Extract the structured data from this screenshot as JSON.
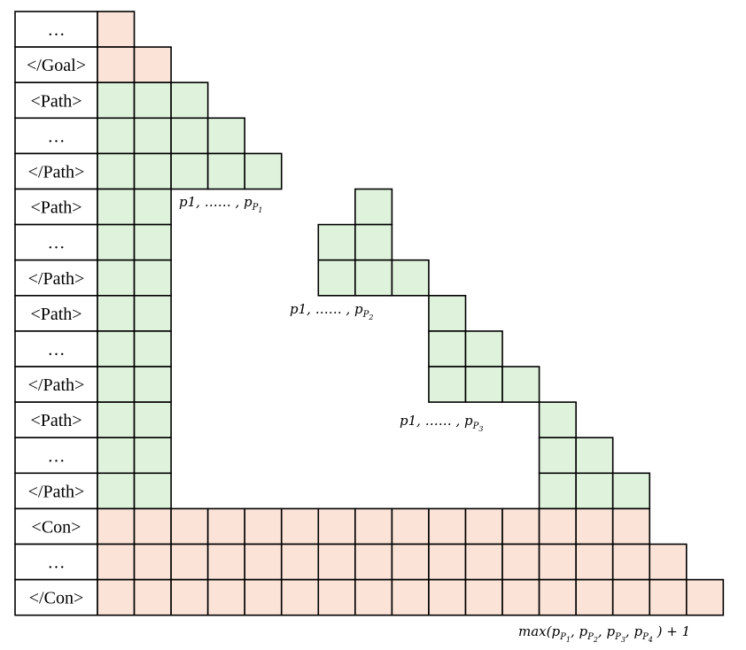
{
  "rows": [
    {
      "label": "…",
      "type": "goal",
      "green": 0,
      "pink": 1
    },
    {
      "label": "</Goal>",
      "type": "goal",
      "green": 0,
      "pink": 2
    },
    {
      "label": "<Path>",
      "type": "path",
      "green": 3,
      "pink": 0
    },
    {
      "label": "…",
      "type": "path",
      "green": 4,
      "pink": 0
    },
    {
      "label": "</Path>",
      "type": "path",
      "green": 5,
      "pink": 0
    },
    {
      "label": "<Path>",
      "type": "path",
      "green": 2,
      "pink": 0,
      "extra_start": 7,
      "extra_len": 1
    },
    {
      "label": "…",
      "type": "path",
      "green": 2,
      "pink": 0,
      "extra_start": 6,
      "extra_len": 2
    },
    {
      "label": "</Path>",
      "type": "path",
      "green": 2,
      "pink": 0,
      "extra_start": 6,
      "extra_len": 3
    },
    {
      "label": "<Path>",
      "type": "path",
      "green": 2,
      "pink": 0,
      "extra_start": 9,
      "extra_len": 1
    },
    {
      "label": "…",
      "type": "path",
      "green": 2,
      "pink": 0,
      "extra_start": 9,
      "extra_len": 2
    },
    {
      "label": "</Path>",
      "type": "path",
      "green": 2,
      "pink": 0,
      "extra_start": 9,
      "extra_len": 3
    },
    {
      "label": "<Path>",
      "type": "path",
      "green": 2,
      "pink": 0,
      "extra_start": 12,
      "extra_len": 1
    },
    {
      "label": "…",
      "type": "path",
      "green": 2,
      "pink": 0,
      "extra_start": 12,
      "extra_len": 2
    },
    {
      "label": "</Path>",
      "type": "path",
      "green": 2,
      "pink": 0,
      "extra_start": 12,
      "extra_len": 3
    },
    {
      "label": "<Con>",
      "type": "con",
      "green": 0,
      "pink": 15
    },
    {
      "label": "…",
      "type": "con",
      "green": 0,
      "pink": 16
    },
    {
      "label": "</Con>",
      "type": "con",
      "green": 0,
      "pink": 17
    }
  ],
  "annotations": {
    "p1": {
      "base": "p",
      "first": "1",
      "dots": ", …… , ",
      "sub": "P",
      "subsub": "1"
    },
    "p2": {
      "base": "p",
      "first": "1",
      "dots": ", …… , ",
      "sub": "P",
      "subsub": "2"
    },
    "p3": {
      "base": "p",
      "first": "1",
      "dots": ", …… , ",
      "sub": "P",
      "subsub": "3"
    },
    "max": {
      "fn": "max",
      "open": "(",
      "close": " ) + 1",
      "sep": ", ",
      "terms": [
        "1",
        "2",
        "3",
        "4"
      ]
    }
  },
  "colors": {
    "green": "#dff2dc",
    "pink": "#fbe3d8",
    "stroke": "#000000",
    "label_bg": "#ffffff"
  }
}
